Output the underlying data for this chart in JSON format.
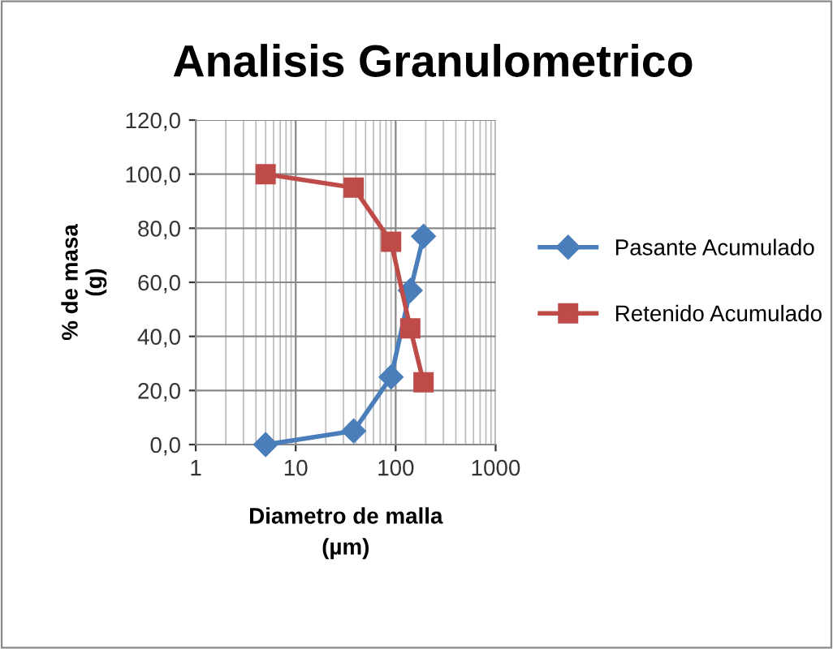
{
  "chart_data": {
    "type": "line",
    "title": "Analisis Granulometrico",
    "xlabel": "Diametro de malla\n(µm)",
    "ylabel": "% de masa\n(g)",
    "log": "x",
    "xlim": [
      1,
      1000
    ],
    "xticks": [
      1,
      10,
      100,
      1000
    ],
    "ylim": [
      0,
      120
    ],
    "yticks": [
      {
        "value": 0,
        "label": "0,0"
      },
      {
        "value": 20,
        "label": "20,0"
      },
      {
        "value": 40,
        "label": "40,0"
      },
      {
        "value": 60,
        "label": "60,0"
      },
      {
        "value": 80,
        "label": "80,0"
      },
      {
        "value": 100,
        "label": "100,0"
      },
      {
        "value": 120,
        "label": "120,0"
      }
    ],
    "grid": true,
    "legend": "right",
    "line_style": "solid",
    "series": [
      {
        "name": "Pasante Acumulado",
        "color": "#4a7ebb",
        "marker": "diamond",
        "x": [
          5,
          38,
          90,
          140,
          190
        ],
        "values": [
          0,
          5,
          25,
          57,
          77
        ]
      },
      {
        "name": "Retenido Acumulado",
        "color": "#be4b48",
        "marker": "square",
        "x": [
          5,
          38,
          90,
          140,
          190
        ],
        "values": [
          100,
          95,
          75,
          43,
          23
        ]
      }
    ]
  }
}
